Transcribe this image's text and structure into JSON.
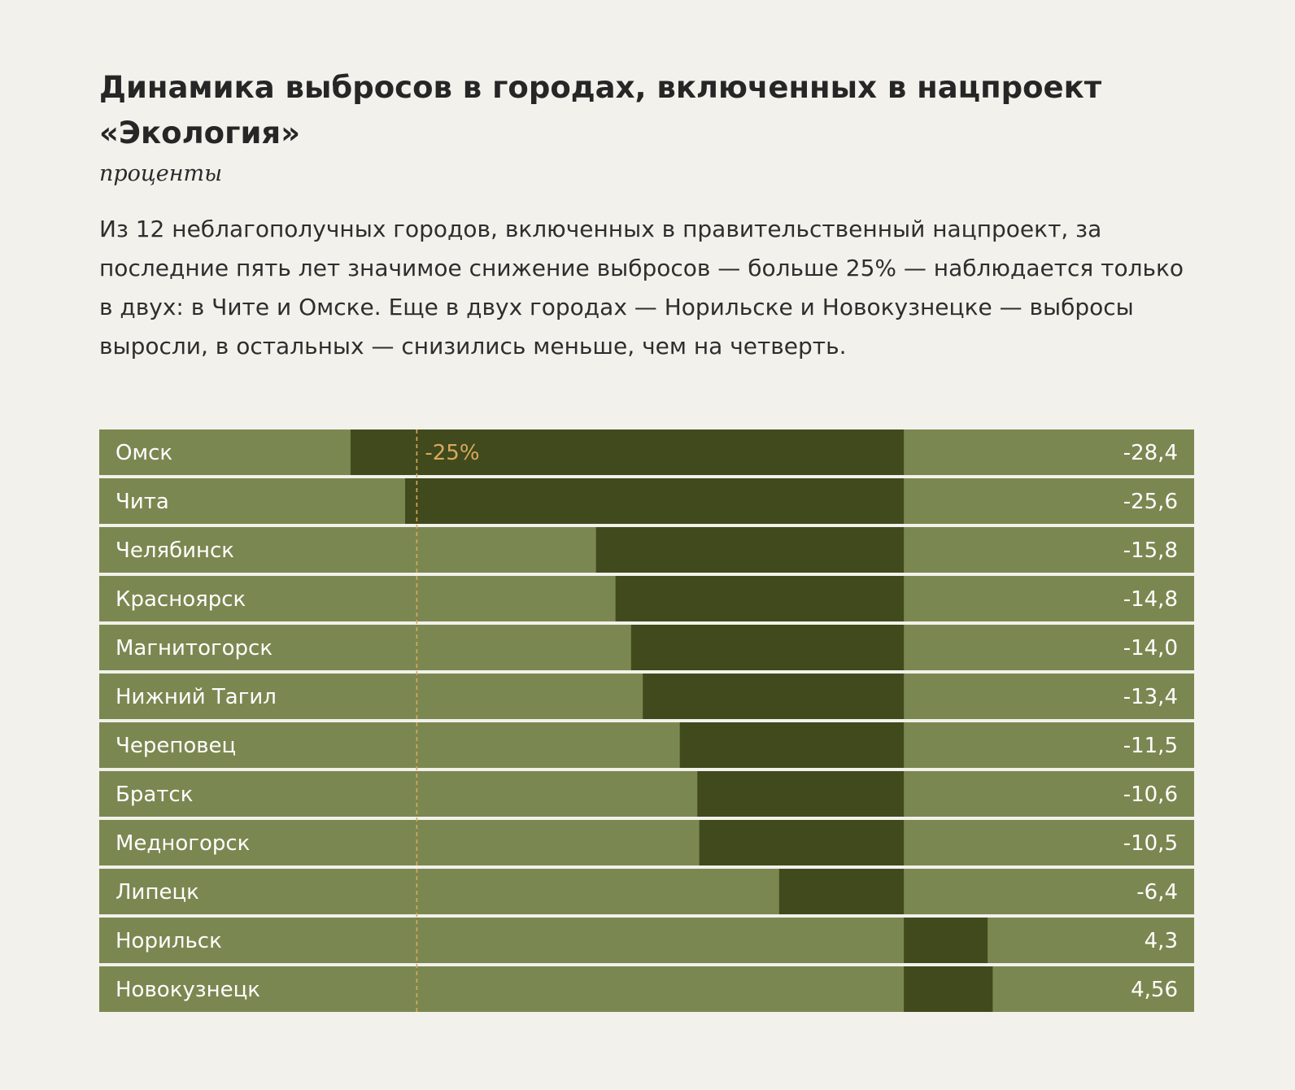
{
  "header": {
    "title": "Динамика выбросов в городах, включенных в нацпроект «Экология»",
    "subtitle": "проценты",
    "lead": "Из 12 неблагополучных городов, включенных в правительственный нацпроект, за последние пять лет значимое снижение выбросов — больше 25% — наблюдается только в двух: в Чите и Омске. Еще в двух городах — Норильске и Новокузнецке — выбросы выросли, в остальных — снизились меньше, чем на четверть."
  },
  "colors": {
    "background": "#f2f1eb",
    "row_fill": "#7b8750",
    "bar_fill": "#404a1d",
    "row_text": "#ffffff",
    "reference_line": "#d9a95c"
  },
  "chart_data": {
    "type": "bar",
    "orientation": "horizontal",
    "categories": [
      "Омск",
      "Чита",
      "Челябинск",
      "Красноярск",
      "Магнитогорск",
      "Нижний Тагил",
      "Череповец",
      "Братск",
      "Медногорск",
      "Липецк",
      "Норильск",
      "Новокузнецк"
    ],
    "values": [
      -28.4,
      -25.6,
      -15.8,
      -14.8,
      -14.0,
      -13.4,
      -11.5,
      -10.6,
      -10.5,
      -6.4,
      4.3,
      4.56
    ],
    "value_labels": [
      "-28,4",
      "-25,6",
      "-15,8",
      "-14,8",
      "-14,0",
      "-13,4",
      "-11,5",
      "-10,6",
      "-10,5",
      "-6,4",
      "4,3",
      "4,56"
    ],
    "xlim": [
      -41.3,
      14.9
    ],
    "reference_line": {
      "value": -25,
      "label": "-25%"
    }
  }
}
